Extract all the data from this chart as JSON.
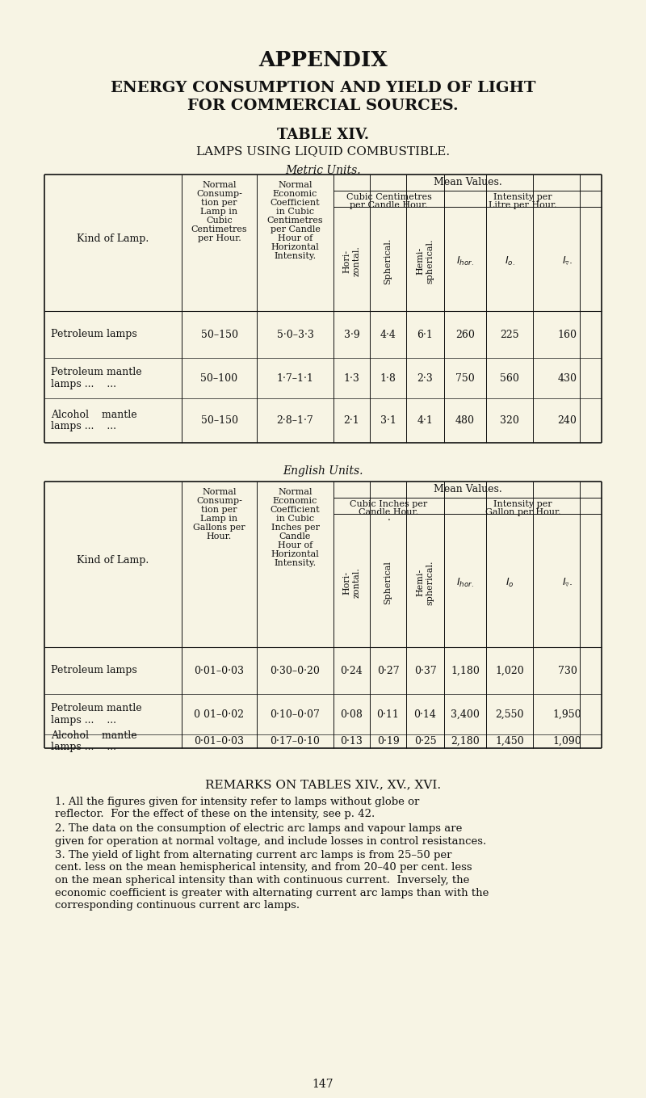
{
  "bg_color": "#f7f4e4",
  "text_color": "#111111",
  "title1": "APPENDIX",
  "title2": "ENERGY CONSUMPTION AND YIELD OF LIGHT",
  "title3": "FOR COMMERCIAL SOURCES.",
  "table_title": "TABLE XIV.",
  "table_subtitle": "LAMPS USING LIQUID COMBUSTIBLE.",
  "metric_label": "Metric Units.",
  "english_label": "English Units.",
  "remarks_title": "REMARKS ON TABLES XIV., XV., XVI.",
  "remarks": [
    "1. All the figures given for intensity refer to lamps without globe or\nreflector.  For the effect of these on the intensity, see p. 42.",
    "2. The data on the consumption of electric arc lamps and vapour lamps are\ngiven for operation at normal voltage, and include losses in control resistances.",
    "3. The yield of light from alternating current arc lamps is from 25–50 per\ncent. less on the mean hemispherical intensity, and from 20–40 per cent. less\non the mean spherical intensity than with continuous current.  Inversely, the\neconomic coefficient is greater with alternating current arc lamps than with the\ncorresponding continuous current arc lamps."
  ],
  "page_number": "147",
  "metric_rows": [
    [
      "Petroleum lamps",
      "50–150",
      "5·0–3·3",
      "3·9",
      "4·4",
      "6·1",
      "260",
      "225",
      "160"
    ],
    [
      "Petroleum mantle",
      "50–100",
      "1·7–1·1",
      "1·3",
      "1·8",
      "2·3",
      "750",
      "560",
      "430"
    ],
    [
      "lamps ...    ...",
      "",
      "",
      "",
      "",
      "",
      "",
      "",
      ""
    ],
    [
      "Alcohol    mantle",
      "50–150",
      "2·8–1·7",
      "2·1",
      "3·1",
      "4·1",
      "480",
      "320",
      "240"
    ],
    [
      "lamps ...    ...",
      "",
      "",
      "",
      "",
      "",
      "",
      "",
      ""
    ]
  ],
  "english_rows": [
    [
      "Petroleum lamps",
      "0·01–0·03",
      "0·30–0·20",
      "0·24",
      "0·27",
      "0·37",
      "1,180",
      "1,020",
      "730"
    ],
    [
      "Petroleum mantle",
      "0 01–0·02",
      "0·10–0·07",
      "0·08",
      "0·11",
      "0·14",
      "3,400",
      "2,550",
      "1,950"
    ],
    [
      "lamps ...    ...",
      "",
      "",
      "",
      "",
      "",
      "",
      "",
      ""
    ],
    [
      "Alcohol    mantle",
      "0·01–0·03",
      "0·17–0·10",
      "0·13",
      "0·19",
      "0·25",
      "2,180",
      "1,450",
      "1,090"
    ],
    [
      "lamps ...    ...",
      "",
      "",
      "",
      "",
      "",
      "",
      "",
      ""
    ]
  ]
}
